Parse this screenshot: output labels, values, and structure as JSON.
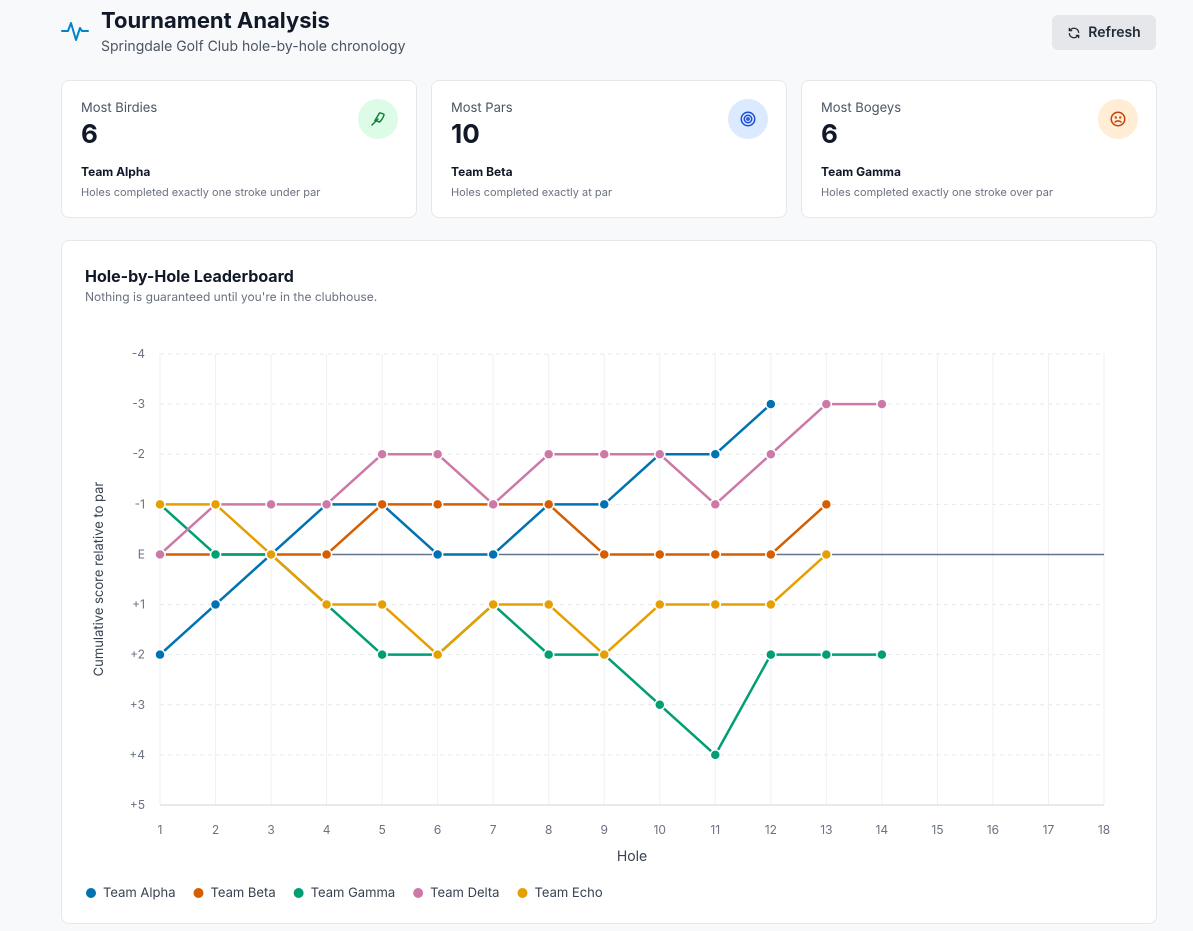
{
  "header": {
    "title": "Tournament Analysis",
    "subtitle": "Springdale Golf Club hole-by-hole chronology",
    "button": "Refresh"
  },
  "cards": [
    {
      "label": "Most Birdies",
      "value": 6,
      "team": "Team Alpha",
      "description": "Holes completed exactly one stroke under par"
    },
    {
      "label": "Most Pars",
      "value": 10,
      "team": "Team Beta",
      "description": "Holes completed exactly at par"
    },
    {
      "label": "Most Bogeys",
      "value": 6,
      "team": "Team Gamma",
      "description": "Holes completed exactly one stroke over par"
    }
  ],
  "chart_data": {
    "type": "line",
    "title": "Hole-by-Hole Leaderboard",
    "subtitle": "Nothing is guaranteed until you're in the clubhouse.",
    "x_label": "Hole",
    "y_label": "Cumulative score relative to par",
    "x": [
      1,
      2,
      3,
      4,
      5,
      6,
      7,
      8,
      9,
      10,
      11,
      12,
      13,
      14,
      15,
      16,
      17,
      18
    ],
    "xlim": [
      1,
      18
    ],
    "xticks": [
      1,
      2,
      3,
      4,
      5,
      6,
      7,
      8,
      9,
      10,
      11,
      12,
      13,
      14,
      15,
      16,
      17,
      18
    ],
    "ylim": [
      -4,
      5
    ],
    "y_inverted": true,
    "yticks": [
      -4,
      -3,
      -2,
      -1,
      {
        "value": 0,
        "label": "E"
      },
      {
        "value": 1,
        "label": "+1"
      },
      {
        "value": 2,
        "label": "+2"
      },
      {
        "value": 3,
        "label": "+3"
      },
      {
        "value": 4,
        "label": "+4"
      },
      {
        "value": 5,
        "label": "+5"
      }
    ],
    "baseline": 0,
    "grid": true,
    "legend": "bottom-left",
    "series": [
      {
        "name": "Team Alpha",
        "color": "#0072B2",
        "values": [
          2,
          1,
          0,
          -1,
          -1,
          0,
          0,
          -1,
          -1,
          -2,
          -2,
          -3,
          null,
          null,
          null,
          null,
          null,
          null
        ]
      },
      {
        "name": "Team Beta",
        "color": "#D55E00",
        "values": [
          0,
          0,
          0,
          0,
          -1,
          -1,
          -1,
          -1,
          0,
          0,
          0,
          0,
          -1,
          null,
          null,
          null,
          null,
          null
        ]
      },
      {
        "name": "Team Gamma",
        "color": "#009E73",
        "values": [
          -1,
          0,
          0,
          1,
          2,
          2,
          1,
          2,
          2,
          3,
          4,
          2,
          2,
          2,
          null,
          null,
          null,
          null
        ]
      },
      {
        "name": "Team Delta",
        "color": "#CC79A7",
        "values": [
          0,
          -1,
          -1,
          -1,
          -2,
          -2,
          -1,
          -2,
          -2,
          -2,
          -1,
          -2,
          -3,
          -3,
          null,
          null,
          null,
          null
        ]
      },
      {
        "name": "Team Echo",
        "color": "#E69F00",
        "values": [
          -1,
          -1,
          0,
          1,
          1,
          2,
          1,
          1,
          2,
          1,
          1,
          1,
          0,
          null,
          null,
          null,
          null,
          null
        ]
      }
    ]
  }
}
